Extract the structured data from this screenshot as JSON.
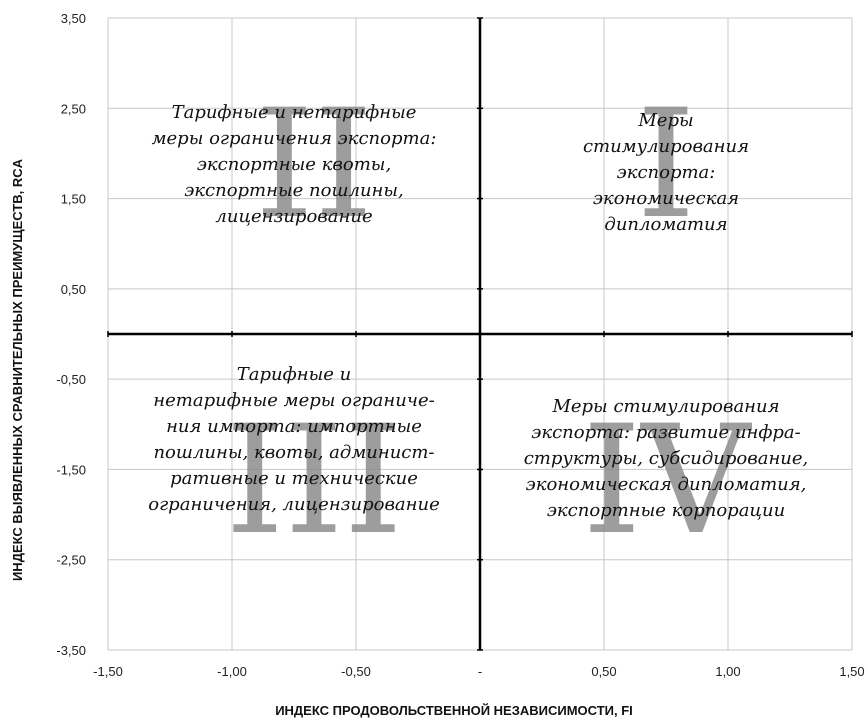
{
  "chart_data": {
    "type": "scatter",
    "title": "",
    "xlabel": "ИНДЕКС ПРОДОВОЛЬСТВЕННОЙ НЕЗАВИСИМОСТИ, FI",
    "ylabel": "ИНДЕКС ВЫЯВЛЕННЫХ СРАВНИТЕЛЬНЫХ ПРЕИМУЩЕСТВ, RCA",
    "xlim": [
      -1.5,
      1.5
    ],
    "ylim": [
      -3.5,
      3.5
    ],
    "grid": true,
    "x_ticks": [
      {
        "value": -1.5,
        "label": "-1,50"
      },
      {
        "value": -1.0,
        "label": "-1,00"
      },
      {
        "value": -0.5,
        "label": "-0,50"
      },
      {
        "value": 0.0,
        "label": "-"
      },
      {
        "value": 0.5,
        "label": "0,50"
      },
      {
        "value": 1.0,
        "label": "1,00"
      },
      {
        "value": 1.5,
        "label": "1,50"
      }
    ],
    "y_ticks": [
      {
        "value": 3.5,
        "label": "3,50"
      },
      {
        "value": 2.5,
        "label": "2,50"
      },
      {
        "value": 1.5,
        "label": "1,50"
      },
      {
        "value": 0.5,
        "label": "0,50"
      },
      {
        "value": -0.5,
        "label": "-0,50"
      },
      {
        "value": -1.5,
        "label": "-1,50"
      },
      {
        "value": -2.5,
        "label": "-2,50"
      },
      {
        "value": -3.5,
        "label": "-3,50"
      }
    ],
    "quadrants": [
      {
        "numeral": "II",
        "lines": [
          "Тарифные и нетарифные",
          "меры ограничения экспорта:",
          "экспортные квоты,",
          "экспортные пошлины,",
          "лицензирование"
        ]
      },
      {
        "numeral": "I",
        "lines": [
          "Меры",
          "стимулирования",
          "экспорта:",
          "экономическая",
          "дипломатия"
        ]
      },
      {
        "numeral": "III",
        "lines": [
          "Тарифные и",
          "нетарифные меры ограниче-",
          "ния импорта: импортные",
          "пошлины, квоты, админист-",
          "ративные и технические",
          "ограничения, лицензирование"
        ]
      },
      {
        "numeral": "IV",
        "lines": [
          "Меры стимулирования",
          "экспорта: развитие инфра-",
          "структуры, субсидирование,",
          "экономическая дипломатия,",
          "экспортные корпорации"
        ]
      }
    ]
  }
}
